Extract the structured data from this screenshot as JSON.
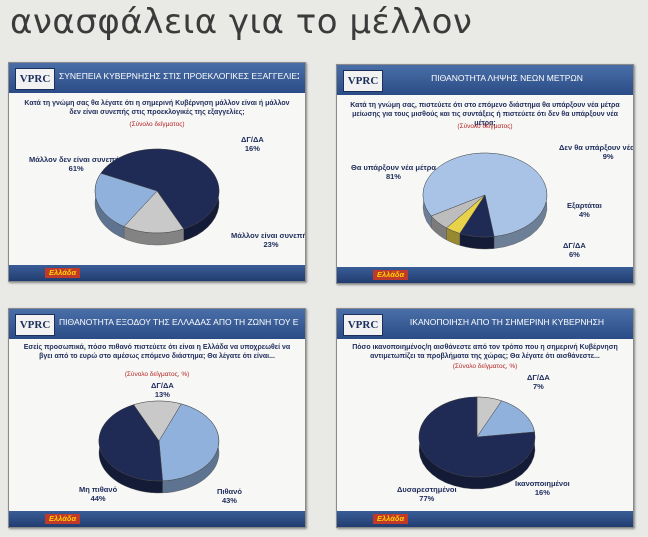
{
  "headline": "ανασφάλεια για το μέλλον",
  "brand": "Ελλάδα",
  "logo": "VPRC",
  "slides": [
    {
      "title": "ΣΥΝΕΠΕΙΑ ΚΥΒΕΡΝΗΣΗΣ ΣΤΙΣ ΠΡΟΕΚΛΟΓΙΚΕΣ ΕΞΑΓΓΕΛΙΕΣ",
      "question": "Κατά τη γνώμη σας θα λέγατε ότι η σημερινή Κυβέρνηση μάλλον είναι ή μάλλον δεν είναι συνεπής στις προεκλογικές της εξαγγελίες;",
      "sample": "(Σύνολο δείγματος)",
      "labels": [
        {
          "name": "Μάλλον δεν είναι συνεπής",
          "value": "61%"
        },
        {
          "name": "ΔΓ/ΔΑ",
          "value": "16%"
        },
        {
          "name": "Μάλλον είναι συνεπής",
          "value": "23%"
        }
      ]
    },
    {
      "title": "ΠΙΘΑΝΟΤΗΤΑ ΛΗΨΗΣ ΝΕΩΝ ΜΕΤΡΩΝ",
      "question": "Κατά τη γνώμη σας, πιστεύετε ότι στο επόμενο διάστημα θα υπάρξουν νέα μέτρα μείωσης για τους μισθούς και τις συντάξεις ή πιστεύετε ότι δεν θα υπάρξουν νέα μέτρα;",
      "sample": "(Σύνολο δείγματος)",
      "labels": [
        {
          "name": "Θα υπάρξουν νέα μέτρα",
          "value": "81%"
        },
        {
          "name": "Δεν θα υπάρξουν νέα μέτρα",
          "value": "9%"
        },
        {
          "name": "Εξαρτάται",
          "value": "4%"
        },
        {
          "name": "ΔΓ/ΔΑ",
          "value": "6%"
        }
      ]
    },
    {
      "title": "ΠΙΘΑΝΟΤΗΤΑ ΕΞΟΔΟΥ ΤΗΣ ΕΛΛΑΔΑΣ ΑΠΟ ΤΗ ΖΩΝΗ ΤΟΥ ΕΥΡΩ",
      "question": "Εσείς προσωπικά, πόσο πιθανό πιστεύετε ότι είναι η Ελλάδα να υποχρεωθεί να βγει από το ευρώ στο αμέσως επόμενο διάστημα; Θα λέγατε ότι είναι...",
      "sample": "(Σύνολο δείγματος, %)",
      "labels": [
        {
          "name": "ΔΓ/ΔΑ",
          "value": "13%"
        },
        {
          "name": "Μη πιθανό",
          "value": "44%"
        },
        {
          "name": "Πιθανό",
          "value": "43%"
        }
      ]
    },
    {
      "title": "ΙΚΑΝΟΠΟΙΗΣΗ ΑΠΟ ΤΗ ΣΗΜΕΡΙΝΗ ΚΥΒΕΡΝΗΣΗ",
      "question": "Πόσο ικανοποιημένος/η αισθάνεστε από τον τρόπο που η σημερινή Κυβέρνηση αντιμετωπίζει τα προβλήματα της χώρας; Θα λέγατε ότι αισθάνεστε...",
      "sample": "(Σύνολο δείγματος, %)",
      "labels": [
        {
          "name": "ΔΓ/ΔΑ",
          "value": "7%"
        },
        {
          "name": "Δυσαρεστημένοι",
          "value": "77%"
        },
        {
          "name": "Ικανοποιημένοι",
          "value": "16%"
        }
      ]
    }
  ],
  "chart_data": [
    {
      "type": "pie",
      "categories": [
        "Μάλλον δεν είναι συνεπής",
        "ΔΓ/ΔΑ",
        "Μάλλον είναι συνεπής"
      ],
      "values": [
        61,
        16,
        23
      ],
      "colors": [
        "#1f2a55",
        "#c9c9c9",
        "#8fb1dc"
      ]
    },
    {
      "type": "pie",
      "categories": [
        "Θα υπάρξουν νέα μέτρα",
        "Δεν θα υπάρξουν νέα μέτρα",
        "Εξαρτάται",
        "ΔΓ/ΔΑ"
      ],
      "values": [
        81,
        9,
        4,
        6
      ],
      "colors": [
        "#a8c3e6",
        "#1f2a55",
        "#e8d24a",
        "#bdbdbd"
      ]
    },
    {
      "type": "pie",
      "categories": [
        "ΔΓ/ΔΑ",
        "Πιθανό",
        "Μη πιθανό"
      ],
      "values": [
        13,
        43,
        44
      ],
      "colors": [
        "#c9c9c9",
        "#8fb1dc",
        "#1f2a55"
      ]
    },
    {
      "type": "pie",
      "categories": [
        "ΔΓ/ΔΑ",
        "Ικανοποιημένοι",
        "Δυσαρεστημένοι"
      ],
      "values": [
        7,
        16,
        77
      ],
      "colors": [
        "#c9c9c9",
        "#8fb1dc",
        "#1f2a55"
      ]
    }
  ]
}
